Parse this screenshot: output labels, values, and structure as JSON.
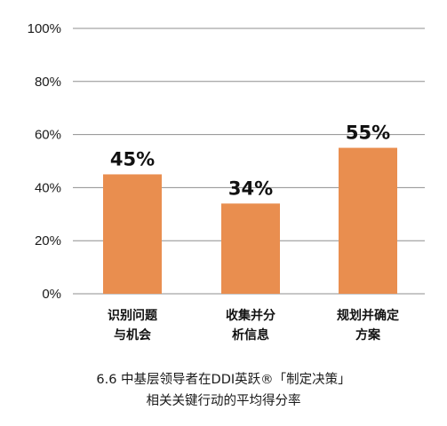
{
  "chart_data": {
    "type": "bar",
    "categories": [
      [
        "识别问题",
        "与机会"
      ],
      [
        "收集并分",
        "析信息"
      ],
      [
        "规划并确定",
        "方案"
      ]
    ],
    "values": [
      45,
      34,
      55
    ],
    "value_labels": [
      "45%",
      "34%",
      "55%"
    ],
    "ylim": [
      0,
      100
    ],
    "yticks": [
      0,
      20,
      40,
      60,
      80,
      100
    ],
    "ytick_labels": [
      "0%",
      "20%",
      "40%",
      "60%",
      "80%",
      "100%"
    ],
    "grid": true,
    "bar_color": "#E98E4F",
    "grid_color": "#8f8f8f"
  },
  "caption": {
    "line1": "6.6 中基层领导者在DDI英跃®「制定决策」",
    "line2": "相关关键行动的平均得分率"
  }
}
